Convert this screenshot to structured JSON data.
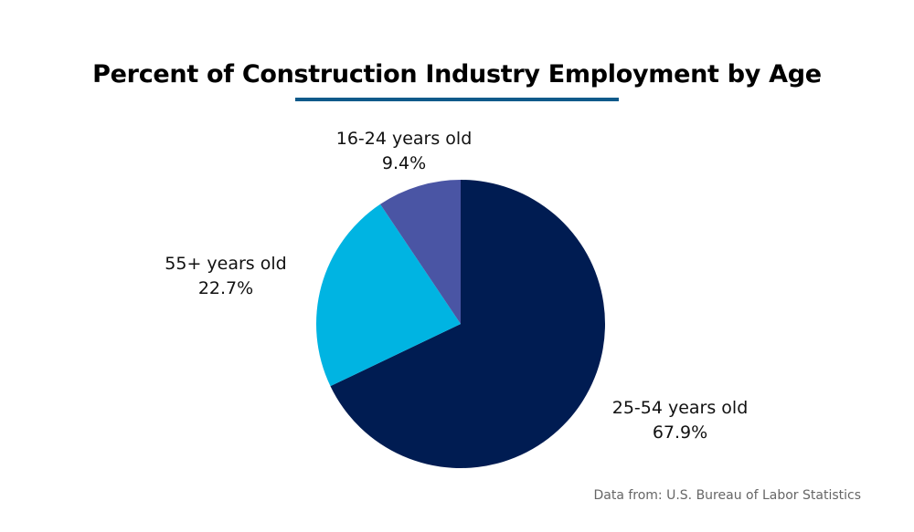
{
  "chart_data": {
    "type": "pie",
    "title": "Percent of Construction Industry Employment by Age",
    "start": "top",
    "direction": "clockwise",
    "slices": [
      {
        "label": "25-54 years old",
        "value": 67.9,
        "value_label": "67.9%",
        "color": "#001c52"
      },
      {
        "label": "55+ years old",
        "value": 22.7,
        "value_label": "22.7%",
        "color": "#00b4e2"
      },
      {
        "label": "16-24 years old",
        "value": 9.4,
        "value_label": "9.4%",
        "color": "#4a55a4"
      }
    ]
  },
  "accent_color": "#0f5a8a",
  "source": "Data from:  U.S. Bureau of Labor Statistics"
}
